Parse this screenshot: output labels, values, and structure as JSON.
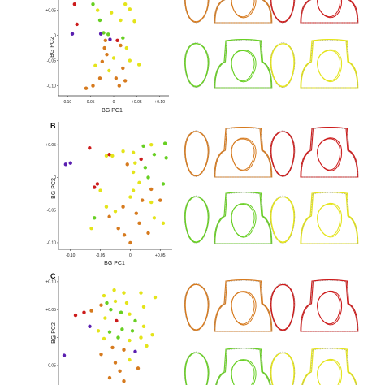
{
  "colors": {
    "red": "#cc1b1b",
    "orange": "#d67a1e",
    "yellow": "#e4e41a",
    "green": "#67cf22",
    "purple": "#5a1fb0"
  },
  "outline_order": [
    "orange",
    "red",
    "green",
    "yellow"
  ],
  "chart_data": [
    {
      "type": "scatter",
      "panel_label": "",
      "xlabel": "BG PC1",
      "ylabel": "BG PC2",
      "x_ticks": [
        "0.10",
        "0.05",
        "0",
        "+0.05",
        "+0.10"
      ],
      "y_ticks": [
        "+0.05",
        "0",
        "-0.05",
        "-0.10"
      ],
      "xlim": [
        -0.12,
        0.12
      ],
      "ylim": [
        -0.12,
        0.08
      ],
      "grid": false,
      "points": [
        {
          "x": -0.085,
          "y": 0.062,
          "color": "red"
        },
        {
          "x": -0.08,
          "y": 0.022,
          "color": "red"
        },
        {
          "x": -0.09,
          "y": 0.003,
          "color": "purple"
        },
        {
          "x": -0.045,
          "y": 0.062,
          "color": "green"
        },
        {
          "x": -0.035,
          "y": 0.05,
          "color": "yellow"
        },
        {
          "x": -0.03,
          "y": 0.03,
          "color": "green"
        },
        {
          "x": -0.022,
          "y": 0.005,
          "color": "green"
        },
        {
          "x": -0.012,
          "y": 0.002,
          "color": "green"
        },
        {
          "x": -0.028,
          "y": 0.003,
          "color": "purple"
        },
        {
          "x": -0.018,
          "y": -0.01,
          "color": "orange"
        },
        {
          "x": -0.008,
          "y": -0.008,
          "color": "purple"
        },
        {
          "x": -0.02,
          "y": -0.025,
          "color": "orange"
        },
        {
          "x": -0.015,
          "y": -0.038,
          "color": "orange"
        },
        {
          "x": -0.025,
          "y": -0.052,
          "color": "orange"
        },
        {
          "x": -0.01,
          "y": -0.07,
          "color": "yellow"
        },
        {
          "x": 0.0,
          "y": -0.045,
          "color": "yellow"
        },
        {
          "x": 0.008,
          "y": -0.01,
          "color": "red"
        },
        {
          "x": 0.015,
          "y": -0.02,
          "color": "orange"
        },
        {
          "x": 0.02,
          "y": -0.005,
          "color": "green"
        },
        {
          "x": 0.028,
          "y": -0.025,
          "color": "yellow"
        },
        {
          "x": 0.035,
          "y": -0.05,
          "color": "yellow"
        },
        {
          "x": 0.02,
          "y": -0.065,
          "color": "orange"
        },
        {
          "x": 0.005,
          "y": -0.085,
          "color": "orange"
        },
        {
          "x": 0.025,
          "y": -0.09,
          "color": "orange"
        },
        {
          "x": 0.012,
          "y": -0.1,
          "color": "orange"
        },
        {
          "x": -0.03,
          "y": -0.085,
          "color": "orange"
        },
        {
          "x": -0.045,
          "y": -0.1,
          "color": "orange"
        },
        {
          "x": -0.06,
          "y": -0.105,
          "color": "orange"
        },
        {
          "x": -0.04,
          "y": -0.06,
          "color": "yellow"
        },
        {
          "x": 0.055,
          "y": -0.058,
          "color": "yellow"
        },
        {
          "x": 0.045,
          "y": 0.028,
          "color": "yellow"
        },
        {
          "x": 0.035,
          "y": 0.052,
          "color": "yellow"
        },
        {
          "x": 0.025,
          "y": 0.062,
          "color": "yellow"
        },
        {
          "x": 0.015,
          "y": 0.03,
          "color": "yellow"
        },
        {
          "x": -0.005,
          "y": 0.045,
          "color": "yellow"
        }
      ]
    },
    {
      "type": "scatter",
      "panel_label": "B",
      "xlabel": "BG PC1",
      "ylabel": "BG PC2",
      "x_ticks": [
        "-0.10",
        "-0.05",
        "0",
        "+0.05"
      ],
      "y_ticks": [
        "+0.05",
        "0",
        "-0.05",
        "-0.10"
      ],
      "xlim": [
        -0.12,
        0.07
      ],
      "ylim": [
        -0.11,
        0.085
      ],
      "grid": false,
      "points": [
        {
          "x": -0.068,
          "y": 0.045,
          "color": "red"
        },
        {
          "x": -0.04,
          "y": 0.033,
          "color": "yellow"
        },
        {
          "x": -0.035,
          "y": 0.035,
          "color": "red"
        },
        {
          "x": -0.03,
          "y": 0.033,
          "color": "yellow"
        },
        {
          "x": -0.012,
          "y": 0.04,
          "color": "yellow"
        },
        {
          "x": 0.005,
          "y": 0.038,
          "color": "yellow"
        },
        {
          "x": 0.022,
          "y": 0.048,
          "color": "green"
        },
        {
          "x": 0.035,
          "y": 0.05,
          "color": "yellow"
        },
        {
          "x": 0.058,
          "y": 0.052,
          "color": "green"
        },
        {
          "x": 0.06,
          "y": 0.03,
          "color": "green"
        },
        {
          "x": 0.04,
          "y": 0.035,
          "color": "green"
        },
        {
          "x": 0.018,
          "y": 0.028,
          "color": "red"
        },
        {
          "x": 0.008,
          "y": 0.022,
          "color": "yellow"
        },
        {
          "x": -0.005,
          "y": 0.02,
          "color": "orange"
        },
        {
          "x": -0.108,
          "y": 0.02,
          "color": "purple"
        },
        {
          "x": -0.1,
          "y": 0.022,
          "color": "purple"
        },
        {
          "x": 0.025,
          "y": 0.015,
          "color": "green"
        },
        {
          "x": 0.005,
          "y": 0.008,
          "color": "yellow"
        },
        {
          "x": 0.03,
          "y": 0.0,
          "color": "green"
        },
        {
          "x": 0.015,
          "y": -0.008,
          "color": "yellow"
        },
        {
          "x": 0.035,
          "y": -0.018,
          "color": "orange"
        },
        {
          "x": 0.055,
          "y": -0.01,
          "color": "green"
        },
        {
          "x": 0.005,
          "y": -0.02,
          "color": "yellow"
        },
        {
          "x": 0.0,
          "y": -0.03,
          "color": "yellow"
        },
        {
          "x": 0.02,
          "y": -0.035,
          "color": "orange"
        },
        {
          "x": 0.035,
          "y": -0.038,
          "color": "yellow"
        },
        {
          "x": 0.05,
          "y": -0.035,
          "color": "orange"
        },
        {
          "x": -0.055,
          "y": -0.01,
          "color": "red"
        },
        {
          "x": -0.06,
          "y": -0.015,
          "color": "red"
        },
        {
          "x": -0.05,
          "y": -0.02,
          "color": "yellow"
        },
        {
          "x": -0.04,
          "y": -0.045,
          "color": "yellow"
        },
        {
          "x": -0.035,
          "y": -0.06,
          "color": "orange"
        },
        {
          "x": -0.025,
          "y": -0.052,
          "color": "yellow"
        },
        {
          "x": -0.012,
          "y": -0.045,
          "color": "orange"
        },
        {
          "x": 0.01,
          "y": -0.055,
          "color": "orange"
        },
        {
          "x": 0.015,
          "y": -0.07,
          "color": "orange"
        },
        {
          "x": -0.02,
          "y": -0.078,
          "color": "orange"
        },
        {
          "x": -0.01,
          "y": -0.088,
          "color": "orange"
        },
        {
          "x": 0.0,
          "y": -0.1,
          "color": "orange"
        },
        {
          "x": 0.03,
          "y": -0.085,
          "color": "orange"
        },
        {
          "x": 0.04,
          "y": -0.062,
          "color": "yellow"
        },
        {
          "x": -0.06,
          "y": -0.062,
          "color": "green"
        },
        {
          "x": -0.065,
          "y": -0.078,
          "color": "yellow"
        },
        {
          "x": 0.055,
          "y": -0.07,
          "color": "yellow"
        }
      ]
    },
    {
      "type": "scatter",
      "panel_label": "C",
      "xlabel": "",
      "ylabel": "BG PC2",
      "x_ticks": [],
      "y_ticks": [
        "+0.10",
        "+0.05",
        "0",
        "-0.05"
      ],
      "xlim": [
        -0.12,
        0.08
      ],
      "ylim": [
        -0.085,
        0.11
      ],
      "grid": false,
      "points": [
        {
          "x": -0.04,
          "y": 0.075,
          "color": "yellow"
        },
        {
          "x": -0.022,
          "y": 0.085,
          "color": "yellow"
        },
        {
          "x": -0.005,
          "y": 0.08,
          "color": "yellow"
        },
        {
          "x": 0.025,
          "y": 0.08,
          "color": "yellow"
        },
        {
          "x": 0.05,
          "y": 0.072,
          "color": "yellow"
        },
        {
          "x": -0.045,
          "y": 0.058,
          "color": "orange"
        },
        {
          "x": -0.035,
          "y": 0.062,
          "color": "green"
        },
        {
          "x": -0.02,
          "y": 0.065,
          "color": "yellow"
        },
        {
          "x": 0.0,
          "y": 0.062,
          "color": "yellow"
        },
        {
          "x": 0.03,
          "y": 0.055,
          "color": "yellow"
        },
        {
          "x": -0.028,
          "y": 0.05,
          "color": "green"
        },
        {
          "x": -0.01,
          "y": 0.045,
          "color": "green"
        },
        {
          "x": 0.005,
          "y": 0.042,
          "color": "yellow"
        },
        {
          "x": -0.09,
          "y": 0.04,
          "color": "red"
        },
        {
          "x": -0.075,
          "y": 0.045,
          "color": "red"
        },
        {
          "x": -0.062,
          "y": 0.048,
          "color": "orange"
        },
        {
          "x": -0.038,
          "y": 0.035,
          "color": "yellow"
        },
        {
          "x": -0.018,
          "y": 0.03,
          "color": "red"
        },
        {
          "x": 0.015,
          "y": 0.03,
          "color": "green"
        },
        {
          "x": -0.065,
          "y": 0.02,
          "color": "purple"
        },
        {
          "x": -0.05,
          "y": 0.012,
          "color": "yellow"
        },
        {
          "x": -0.03,
          "y": 0.01,
          "color": "green"
        },
        {
          "x": -0.008,
          "y": 0.015,
          "color": "green"
        },
        {
          "x": 0.01,
          "y": 0.012,
          "color": "green"
        },
        {
          "x": 0.03,
          "y": 0.02,
          "color": "yellow"
        },
        {
          "x": -0.04,
          "y": -0.002,
          "color": "yellow"
        },
        {
          "x": -0.015,
          "y": 0.0,
          "color": "green"
        },
        {
          "x": 0.005,
          "y": -0.005,
          "color": "yellow"
        },
        {
          "x": 0.025,
          "y": 0.0,
          "color": "yellow"
        },
        {
          "x": 0.045,
          "y": 0.005,
          "color": "yellow"
        },
        {
          "x": -0.025,
          "y": -0.018,
          "color": "orange"
        },
        {
          "x": -0.005,
          "y": -0.022,
          "color": "orange"
        },
        {
          "x": 0.015,
          "y": -0.025,
          "color": "purple"
        },
        {
          "x": 0.035,
          "y": -0.015,
          "color": "yellow"
        },
        {
          "x": -0.045,
          "y": -0.03,
          "color": "orange"
        },
        {
          "x": -0.02,
          "y": -0.045,
          "color": "orange"
        },
        {
          "x": 0.005,
          "y": -0.04,
          "color": "yellow"
        },
        {
          "x": 0.02,
          "y": -0.055,
          "color": "orange"
        },
        {
          "x": -0.012,
          "y": -0.06,
          "color": "orange"
        },
        {
          "x": -0.03,
          "y": -0.072,
          "color": "orange"
        },
        {
          "x": -0.005,
          "y": -0.078,
          "color": "orange"
        },
        {
          "x": -0.11,
          "y": -0.032,
          "color": "purple"
        }
      ]
    }
  ]
}
